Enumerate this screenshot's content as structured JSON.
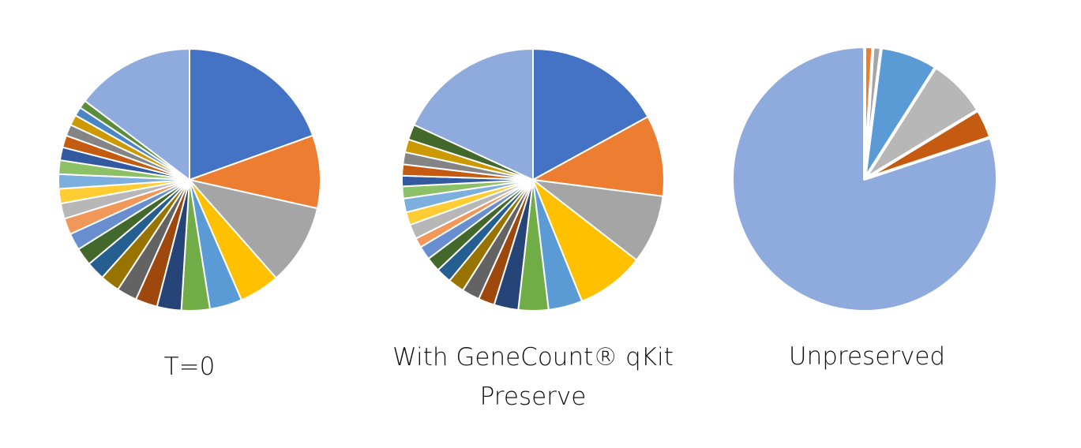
{
  "chart_data": [
    {
      "type": "pie",
      "title": "T=0",
      "values": [
        19.5,
        9,
        10,
        5,
        4,
        3.5,
        3.0,
        2.7,
        2.5,
        2.4,
        2.3,
        2.2,
        2.1,
        2.0,
        1.9,
        1.8,
        1.8,
        1.7,
        1.6,
        1.5,
        1.4,
        1.3,
        1.1,
        1.0,
        14.7
      ],
      "colors": [
        "#4472C4",
        "#ED7D31",
        "#A5A5A5",
        "#FFC000",
        "#5B9BD5",
        "#70AD47",
        "#264478",
        "#9E480E",
        "#636363",
        "#997300",
        "#255E91",
        "#43682B",
        "#698ED0",
        "#F1975A",
        "#B7B7B7",
        "#FFCD33",
        "#7CAFDD",
        "#8CC168",
        "#335AA1",
        "#C55A11",
        "#848484",
        "#CC9A00",
        "#4A86C5",
        "#5B8C39",
        "#8FAADC"
      ]
    },
    {
      "type": "pie",
      "title": "With GeneCount® qKit Preserve",
      "values": [
        17,
        10,
        8.5,
        8.4,
        4.2,
        3.7,
        3,
        2.0,
        2.2,
        2.0,
        1.9,
        1.8,
        1.7,
        1.2,
        1.8,
        1.6,
        1.7,
        1.5,
        1.3,
        1.4,
        1.5,
        1.6,
        1.9,
        18.1
      ],
      "colors": [
        "#4472C4",
        "#ED7D31",
        "#A5A5A5",
        "#FFC000",
        "#5B9BD5",
        "#70AD47",
        "#264478",
        "#9E480E",
        "#636363",
        "#997300",
        "#255E91",
        "#43682B",
        "#698ED0",
        "#F1975A",
        "#B7B7B7",
        "#FFCD33",
        "#7CAFDD",
        "#8CC168",
        "#335AA1",
        "#C55A11",
        "#848484",
        "#CC9A00",
        "#43682B",
        "#8FAADC"
      ]
    },
    {
      "type": "pie",
      "title": "Unpreserved",
      "values": [
        1.0,
        1.0,
        7.0,
        7.3,
        3.6,
        80.1
      ],
      "colors": [
        "#ED7D31",
        "#A5A5A5",
        "#5B9BD5",
        "#B7B7B7",
        "#C55A11",
        "#8FAADC"
      ]
    }
  ]
}
